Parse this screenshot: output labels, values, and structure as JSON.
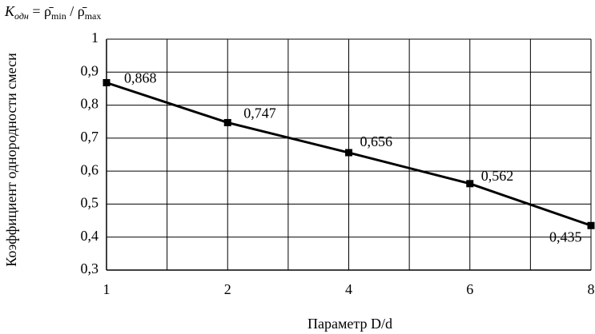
{
  "chart_data": {
    "type": "line",
    "title": [
      "K",
      "одн",
      " = ",
      "ρ̄",
      "min",
      " / ",
      "ρ̄",
      "max"
    ],
    "xlabel": "Параметр D/d",
    "ylabel": "Коэффициент однородности смеси",
    "categories": [
      "1",
      "2",
      "4",
      "6",
      "8"
    ],
    "series": [
      {
        "name": "K",
        "color": "#000000",
        "values": [
          0.868,
          0.747,
          0.656,
          0.562,
          0.435
        ],
        "value_labels": [
          "0,868",
          "0,747",
          "0,656",
          "0,562",
          "0,435"
        ]
      }
    ],
    "ylim": [
      0.3,
      1
    ],
    "yticks": [
      {
        "value": 0.3,
        "label": "0,3"
      },
      {
        "value": 0.4,
        "label": "0,4"
      },
      {
        "value": 0.5,
        "label": "0,5"
      },
      {
        "value": 0.6,
        "label": "0,6"
      },
      {
        "value": 0.7,
        "label": "0,7"
      },
      {
        "value": 0.8,
        "label": "0,8"
      },
      {
        "value": 0.9,
        "label": "0,9"
      },
      1
    ],
    "grid": true
  }
}
